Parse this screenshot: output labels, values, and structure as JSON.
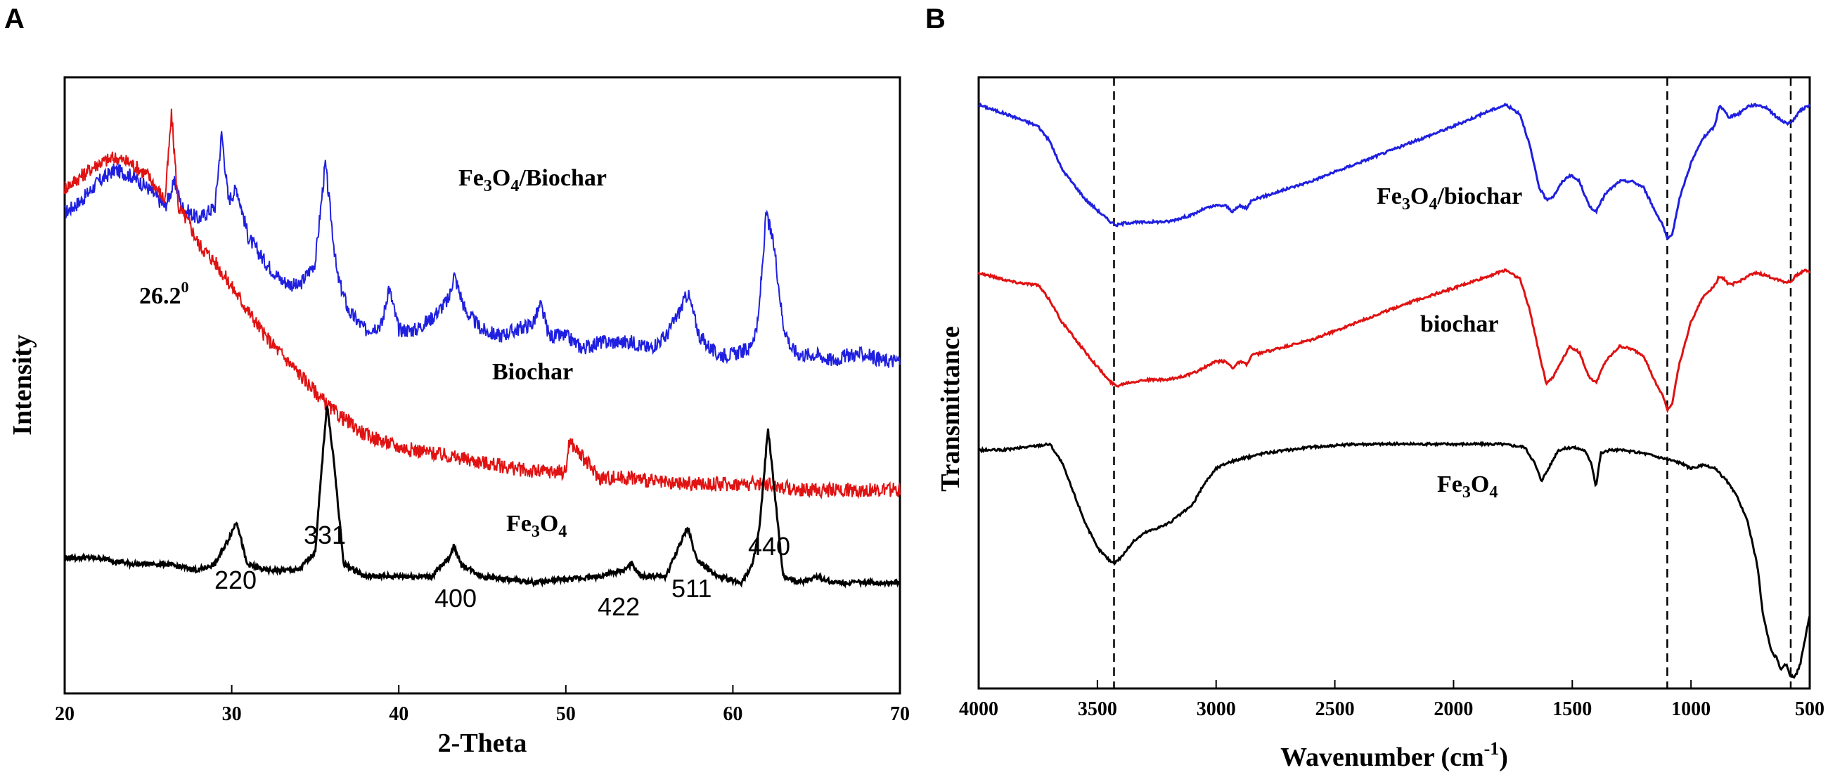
{
  "figure": {
    "panel_a_letter": "A",
    "panel_b_letter": "B"
  },
  "chart_data": [
    {
      "type": "line",
      "panel": "A",
      "title": "",
      "xlabel": "2-Theta",
      "ylabel": "Intensity",
      "xlim": [
        20,
        70
      ],
      "xticks": [
        20,
        30,
        40,
        50,
        60,
        70
      ],
      "yticks": [],
      "grid": false,
      "series": [
        {
          "name": "Fe3O4/Biochar",
          "label_main": "Fe",
          "label_sub1": "3",
          "label_mid": "O",
          "label_sub2": "4",
          "label_tail": "/Biochar",
          "color": "#1f1fe0",
          "x": [
            20,
            21,
            22,
            23,
            24,
            25,
            26,
            26.6,
            27,
            28,
            29,
            29.4,
            29.8,
            30.3,
            31,
            32,
            33,
            34,
            35,
            35.6,
            36.3,
            37,
            38,
            39,
            39.4,
            40,
            41,
            42,
            43,
            43.3,
            44,
            45,
            46,
            47,
            48,
            48.5,
            49,
            50,
            51,
            52,
            53,
            54,
            55,
            56,
            56.8,
            57.3,
            58,
            59,
            60,
            61,
            61.5,
            62,
            62.5,
            63,
            63.5,
            64,
            65,
            66,
            67,
            68,
            69,
            70
          ],
          "y": [
            0.78,
            0.8,
            0.83,
            0.85,
            0.84,
            0.82,
            0.79,
            0.83,
            0.79,
            0.77,
            0.79,
            0.91,
            0.8,
            0.82,
            0.74,
            0.7,
            0.67,
            0.66,
            0.7,
            0.86,
            0.68,
            0.62,
            0.59,
            0.6,
            0.66,
            0.59,
            0.59,
            0.61,
            0.64,
            0.68,
            0.62,
            0.59,
            0.58,
            0.59,
            0.6,
            0.63,
            0.58,
            0.58,
            0.56,
            0.57,
            0.57,
            0.57,
            0.56,
            0.58,
            0.62,
            0.65,
            0.58,
            0.55,
            0.55,
            0.56,
            0.6,
            0.78,
            0.72,
            0.6,
            0.56,
            0.55,
            0.55,
            0.54,
            0.55,
            0.55,
            0.54,
            0.54
          ]
        },
        {
          "name": "Biochar",
          "label_main": "Biochar",
          "color": "#e01212",
          "x": [
            20,
            21,
            22,
            23,
            24,
            25,
            26,
            26.4,
            26.8,
            27.5,
            28,
            29,
            30,
            31,
            32,
            33,
            34,
            35,
            36,
            37,
            38,
            39,
            40,
            42,
            44,
            46,
            48,
            50,
            50.2,
            52,
            54,
            56,
            58,
            60,
            62,
            64,
            66,
            68,
            70
          ],
          "y": [
            0.82,
            0.84,
            0.86,
            0.87,
            0.86,
            0.84,
            0.8,
            0.94,
            0.79,
            0.76,
            0.73,
            0.7,
            0.66,
            0.62,
            0.58,
            0.55,
            0.52,
            0.49,
            0.46,
            0.44,
            0.42,
            0.41,
            0.4,
            0.39,
            0.38,
            0.37,
            0.36,
            0.36,
            0.41,
            0.35,
            0.35,
            0.34,
            0.34,
            0.34,
            0.34,
            0.33,
            0.33,
            0.33,
            0.33
          ]
        },
        {
          "name": "Fe3O4",
          "label_main": "Fe",
          "label_sub1": "3",
          "label_mid": "O",
          "label_sub2": "4",
          "color": "#000000",
          "x": [
            20,
            22,
            24,
            26,
            28,
            29,
            29.8,
            30.3,
            30.9,
            32,
            34,
            35,
            35.4,
            35.7,
            36.1,
            36.7,
            38,
            40,
            42,
            43,
            43.3,
            43.7,
            45,
            48,
            52,
            53.5,
            53.9,
            54.5,
            56,
            56.8,
            57.3,
            57.8,
            59,
            60.5,
            61.2,
            61.6,
            62.1,
            62.6,
            63,
            64,
            65,
            66,
            68,
            70
          ],
          "y": [
            0.22,
            0.22,
            0.21,
            0.21,
            0.2,
            0.21,
            0.25,
            0.28,
            0.21,
            0.2,
            0.2,
            0.23,
            0.37,
            0.47,
            0.38,
            0.21,
            0.19,
            0.19,
            0.19,
            0.22,
            0.24,
            0.21,
            0.19,
            0.18,
            0.19,
            0.2,
            0.21,
            0.19,
            0.19,
            0.24,
            0.27,
            0.22,
            0.19,
            0.18,
            0.21,
            0.27,
            0.43,
            0.3,
            0.19,
            0.18,
            0.19,
            0.18,
            0.18,
            0.18
          ]
        }
      ],
      "annotations": {
        "peak_26": "26.2",
        "peak_26_sup": "0",
        "hkl_220": "220",
        "hkl_331": "331",
        "hkl_400": "400",
        "hkl_422": "422",
        "hkl_511": "511",
        "hkl_440": "440"
      }
    },
    {
      "type": "line",
      "panel": "B",
      "title": "",
      "xlabel_main": "Wavenumber (cm",
      "xlabel_sup": "-1",
      "xlabel_tail": ")",
      "ylabel": "Transmittance",
      "xlim": [
        4000,
        500
      ],
      "xticks": [
        4000,
        3500,
        3000,
        2500,
        2000,
        1500,
        1000,
        500
      ],
      "yticks": [],
      "grid": false,
      "reference_lines": [
        3430,
        1100,
        580
      ],
      "series": [
        {
          "name": "Fe3O4/biochar",
          "label_main": "Fe",
          "label_sub1": "3",
          "label_mid": "O",
          "label_sub2": "4",
          "label_tail": "/biochar",
          "color": "#1f1fe0",
          "x": [
            4000,
            3850,
            3750,
            3700,
            3650,
            3550,
            3450,
            3420,
            3380,
            3300,
            3200,
            3100,
            3050,
            3000,
            2960,
            2930,
            2900,
            2870,
            2850,
            2800,
            2600,
            2400,
            2200,
            2000,
            1850,
            1780,
            1720,
            1680,
            1640,
            1610,
            1580,
            1540,
            1510,
            1470,
            1430,
            1400,
            1360,
            1300,
            1250,
            1200,
            1150,
            1120,
            1100,
            1080,
            1050,
            1000,
            950,
            900,
            880,
            860,
            840,
            800,
            760,
            720,
            680,
            640,
            600,
            580,
            560,
            540,
            520,
            500
          ],
          "y": [
            0.955,
            0.935,
            0.92,
            0.895,
            0.85,
            0.8,
            0.765,
            0.758,
            0.762,
            0.763,
            0.764,
            0.775,
            0.785,
            0.79,
            0.79,
            0.78,
            0.79,
            0.785,
            0.8,
            0.805,
            0.83,
            0.86,
            0.89,
            0.92,
            0.945,
            0.955,
            0.94,
            0.89,
            0.82,
            0.8,
            0.805,
            0.83,
            0.84,
            0.83,
            0.79,
            0.78,
            0.81,
            0.83,
            0.83,
            0.82,
            0.78,
            0.76,
            0.735,
            0.74,
            0.8,
            0.86,
            0.9,
            0.92,
            0.955,
            0.945,
            0.935,
            0.94,
            0.953,
            0.955,
            0.95,
            0.935,
            0.925,
            0.925,
            0.935,
            0.945,
            0.95,
            0.955
          ]
        },
        {
          "name": "biochar",
          "label_main": "biochar",
          "color": "#e01212",
          "x": [
            4000,
            3850,
            3750,
            3700,
            3650,
            3550,
            3450,
            3420,
            3380,
            3300,
            3200,
            3100,
            3050,
            3000,
            2960,
            2930,
            2900,
            2870,
            2850,
            2800,
            2600,
            2400,
            2200,
            2000,
            1850,
            1780,
            1720,
            1680,
            1640,
            1610,
            1580,
            1540,
            1510,
            1470,
            1430,
            1400,
            1360,
            1300,
            1250,
            1200,
            1150,
            1120,
            1100,
            1080,
            1050,
            1000,
            950,
            900,
            880,
            860,
            840,
            800,
            760,
            720,
            680,
            640,
            600,
            580,
            560,
            540,
            520,
            500
          ],
          "y": [
            0.68,
            0.665,
            0.66,
            0.635,
            0.6,
            0.55,
            0.503,
            0.495,
            0.5,
            0.505,
            0.505,
            0.515,
            0.525,
            0.535,
            0.535,
            0.525,
            0.535,
            0.53,
            0.545,
            0.55,
            0.57,
            0.6,
            0.63,
            0.655,
            0.675,
            0.685,
            0.67,
            0.62,
            0.55,
            0.5,
            0.51,
            0.54,
            0.56,
            0.55,
            0.51,
            0.5,
            0.535,
            0.56,
            0.555,
            0.545,
            0.5,
            0.48,
            0.456,
            0.465,
            0.53,
            0.6,
            0.64,
            0.66,
            0.675,
            0.67,
            0.66,
            0.665,
            0.675,
            0.68,
            0.675,
            0.67,
            0.665,
            0.665,
            0.675,
            0.68,
            0.685,
            0.68
          ]
        },
        {
          "name": "Fe3O4",
          "label_main": "Fe",
          "label_sub1": "3",
          "label_mid": "O",
          "label_sub2": "4",
          "color": "#000000",
          "x": [
            4000,
            3900,
            3800,
            3700,
            3650,
            3600,
            3550,
            3500,
            3450,
            3430,
            3400,
            3350,
            3300,
            3200,
            3100,
            3050,
            3000,
            2950,
            2900,
            2800,
            2600,
            2400,
            2200,
            2000,
            1800,
            1700,
            1660,
            1630,
            1600,
            1560,
            1500,
            1450,
            1420,
            1400,
            1380,
            1340,
            1300,
            1200,
            1100,
            1050,
            1000,
            950,
            900,
            850,
            800,
            760,
            720,
            700,
            680,
            660,
            640,
            620,
            600,
            580,
            560,
            540,
            520,
            500
          ],
          "y": [
            0.39,
            0.39,
            0.395,
            0.4,
            0.37,
            0.32,
            0.27,
            0.23,
            0.21,
            0.205,
            0.215,
            0.24,
            0.255,
            0.27,
            0.3,
            0.335,
            0.36,
            0.37,
            0.375,
            0.385,
            0.395,
            0.4,
            0.4,
            0.4,
            0.4,
            0.395,
            0.37,
            0.34,
            0.36,
            0.39,
            0.395,
            0.39,
            0.37,
            0.33,
            0.385,
            0.39,
            0.39,
            0.385,
            0.375,
            0.37,
            0.36,
            0.365,
            0.36,
            0.34,
            0.31,
            0.27,
            0.2,
            0.13,
            0.09,
            0.06,
            0.05,
            0.03,
            0.04,
            0.02,
            0.02,
            0.04,
            0.08,
            0.12
          ]
        }
      ],
      "ylim": [
        0,
        1
      ]
    }
  ]
}
